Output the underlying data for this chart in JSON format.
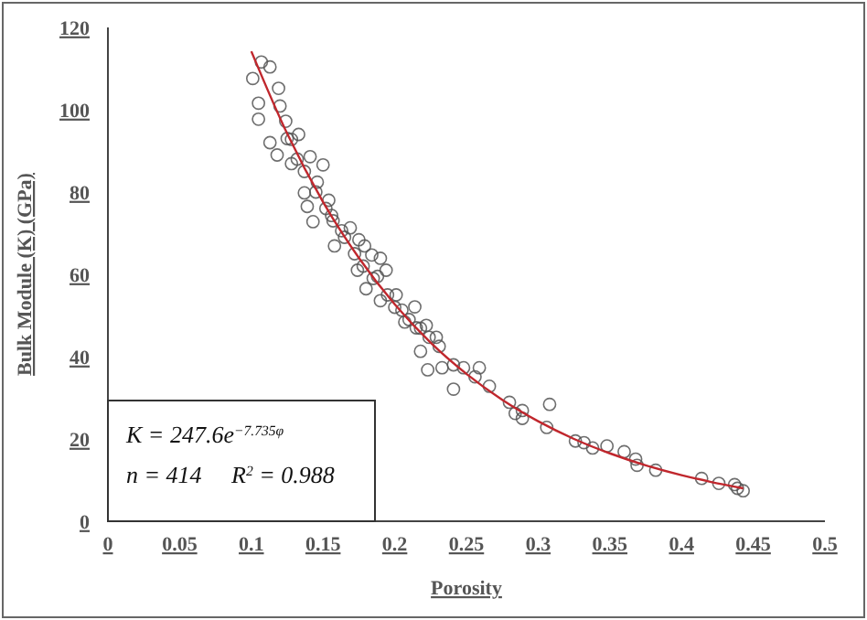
{
  "chart_data": {
    "type": "scatter",
    "xlabel": "Porosity",
    "ylabel": "Bulk Module (K) (GPa)",
    "xlim": [
      0,
      0.5
    ],
    "xticks": [
      0,
      0.05,
      0.1,
      0.15,
      0.2,
      0.25,
      0.3,
      0.35,
      0.4,
      0.45,
      0.5
    ],
    "ylim": [
      0,
      120
    ],
    "yticks": [
      0,
      20,
      40,
      60,
      80,
      100,
      120
    ],
    "grid": false,
    "annotations": [
      "K = 247.6e$^{−7.735φ}$",
      "n = 414     R$^{2}$ = 0.988"
    ],
    "series": [
      {
        "color": "#555555",
        "marker": "circle",
        "x": [
          0.101,
          0.107,
          0.113,
          0.105,
          0.105,
          0.119,
          0.12,
          0.113,
          0.118,
          0.124,
          0.128,
          0.133,
          0.128,
          0.141,
          0.15,
          0.137,
          0.139,
          0.146,
          0.154,
          0.143,
          0.156,
          0.163,
          0.169,
          0.158,
          0.175,
          0.179,
          0.184,
          0.19,
          0.174,
          0.18,
          0.188,
          0.194,
          0.19,
          0.201,
          0.205,
          0.214,
          0.207,
          0.218,
          0.222,
          0.218,
          0.224,
          0.229,
          0.231,
          0.223,
          0.233,
          0.241,
          0.241,
          0.248,
          0.259,
          0.256,
          0.266,
          0.28,
          0.284,
          0.289,
          0.289,
          0.308,
          0.306,
          0.326,
          0.332,
          0.338,
          0.348,
          0.36,
          0.368,
          0.369,
          0.382,
          0.414,
          0.426,
          0.437,
          0.439,
          0.443,
          0.125,
          0.132,
          0.137,
          0.145,
          0.152,
          0.157,
          0.165,
          0.172,
          0.178,
          0.185,
          0.195,
          0.2,
          0.21,
          0.215
        ],
        "values": [
          107.6,
          111.6,
          110.4,
          101.6,
          97.7,
          105.2,
          100.9,
          92,
          89,
          97.2,
          92.8,
          94,
          86.9,
          88.6,
          86.6,
          79.8,
          76.5,
          82.4,
          78,
          72.8,
          74.3,
          70.6,
          71.3,
          66.9,
          68.4,
          66.9,
          64.7,
          63.9,
          61,
          56.5,
          59.5,
          61,
          53.6,
          55,
          51.3,
          52.1,
          48.4,
          46.9,
          47.6,
          41.3,
          44.7,
          44.7,
          42.5,
          36.8,
          37.3,
          38,
          32.1,
          37.3,
          37.3,
          35.1,
          32.8,
          28.9,
          26.2,
          26.9,
          25,
          28.4,
          22.8,
          19.5,
          19.1,
          17.8,
          18.3,
          16.9,
          15.1,
          13.6,
          12.4,
          10.4,
          9.2,
          8.9,
          8,
          7.4,
          93,
          88,
          85,
          80,
          76,
          73,
          69,
          65,
          62,
          59,
          55,
          52,
          49,
          47
        ]
      },
      {
        "type": "line",
        "color": "#c0272d",
        "marker": "none",
        "line_style": "solid",
        "x": [
          0.1,
          0.125,
          0.15,
          0.175,
          0.2,
          0.225,
          0.25,
          0.275,
          0.3,
          0.325,
          0.35,
          0.375,
          0.4,
          0.42,
          0.443
        ],
        "values": [
          114.2,
          94.2,
          77.6,
          64.0,
          52.7,
          43.4,
          35.8,
          29.5,
          24.3,
          20.0,
          16.5,
          13.6,
          11.2,
          9.6,
          8.0
        ]
      }
    ]
  }
}
